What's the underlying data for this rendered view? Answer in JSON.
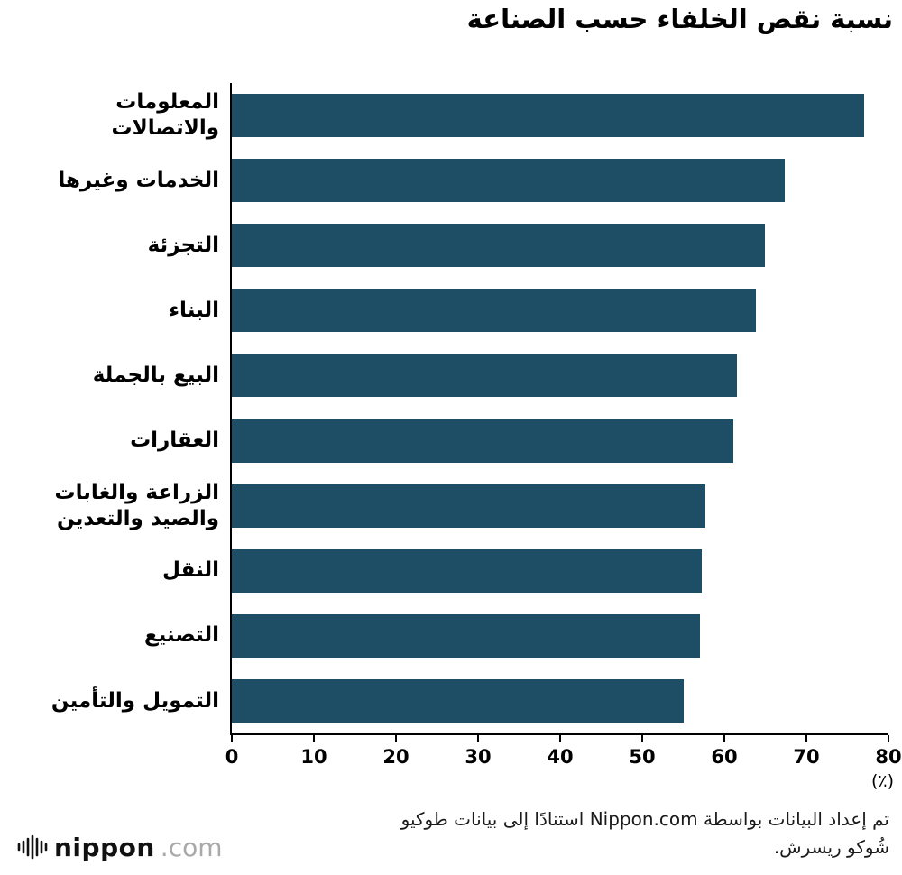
{
  "title": "نسبة نقص الخلفاء حسب الصناعة",
  "chart_data": {
    "type": "bar",
    "orientation": "horizontal",
    "title": "نسبة نقص الخلفاء حسب الصناعة",
    "categories": [
      "المعلومات والاتصالات",
      "الخدمات وغيرها",
      "التجزئة",
      "البناء",
      "البيع بالجملة",
      "العقارات",
      "الزراعة والغابات والصيد والتعدين",
      "النقل",
      "التصنيع",
      "التمويل والتأمين"
    ],
    "values": [
      77,
      67.4,
      64.9,
      63.8,
      61.5,
      61.1,
      57.7,
      57.3,
      57.0,
      55.0
    ],
    "xlim": [
      0,
      80
    ],
    "x_ticks": [
      0,
      10,
      20,
      30,
      40,
      50,
      60,
      70,
      80
    ],
    "x_unit": "(٪)",
    "bar_color": "#1e4d66",
    "grid": false,
    "legend": "none"
  },
  "footer": {
    "note_line1": "تم إعداد البيانات بواسطة Nippon.com استنادًا إلى بيانات طوكيو",
    "note_line2": "شُوكو ريسرش.",
    "brand_name": "nippon",
    "brand_tld": ".com",
    "brand_icon": "soundwave-icon"
  }
}
